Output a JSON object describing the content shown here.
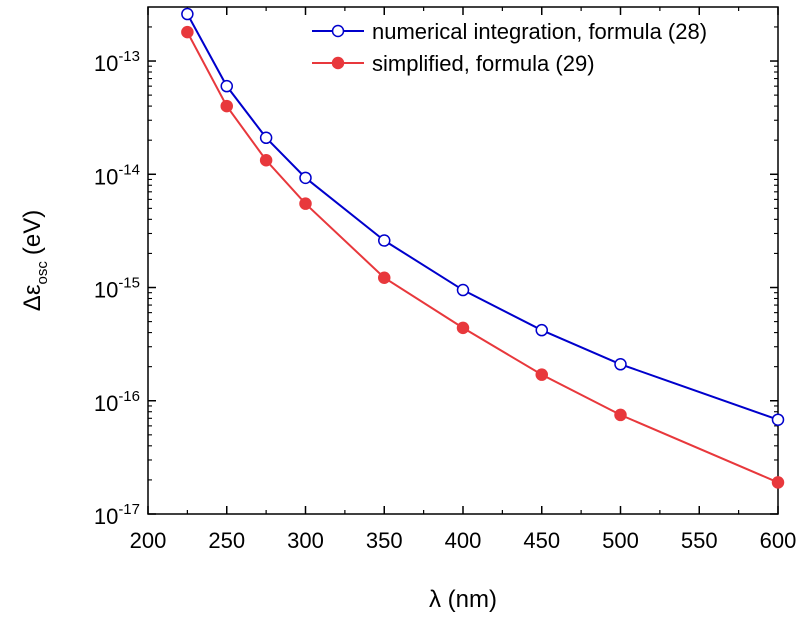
{
  "chart_data": {
    "type": "line",
    "xlabel": "λ (nm)",
    "ylabel": {
      "base": "Δε",
      "subscript": "osc",
      "unit": "(eV)"
    },
    "xlim": [
      200,
      600
    ],
    "ylim": [
      1e-17,
      3e-13
    ],
    "yscale": "log",
    "grid": false,
    "legend_position": "top-right",
    "x_ticks": [
      200,
      250,
      300,
      350,
      400,
      450,
      500,
      550,
      600
    ],
    "y_ticks": [
      {
        "base": "10",
        "exp": "-17",
        "value": 1e-17
      },
      {
        "base": "10",
        "exp": "-16",
        "value": 1e-16
      },
      {
        "base": "10",
        "exp": "-15",
        "value": 1e-15
      },
      {
        "base": "10",
        "exp": "-14",
        "value": 1e-14
      },
      {
        "base": "10",
        "exp": "-13",
        "value": 1e-13
      }
    ],
    "series": [
      {
        "name": "numerical integration, formula (28)",
        "color": "#0000cc",
        "marker": "open-circle",
        "x": [
          225,
          250,
          275,
          300,
          350,
          400,
          450,
          500,
          600
        ],
        "y": [
          2.6e-13,
          6e-14,
          2.1e-14,
          9.3e-15,
          2.6e-15,
          9.5e-16,
          4.2e-16,
          2.1e-16,
          6.8e-17
        ]
      },
      {
        "name": "simplified, formula (29)",
        "color": "#e8383c",
        "marker": "filled-circle",
        "x": [
          225,
          250,
          275,
          300,
          350,
          400,
          450,
          500,
          600
        ],
        "y": [
          1.8e-13,
          4e-14,
          1.33e-14,
          5.5e-15,
          1.22e-15,
          4.4e-16,
          1.7e-16,
          7.5e-17,
          1.9e-17
        ]
      }
    ]
  }
}
